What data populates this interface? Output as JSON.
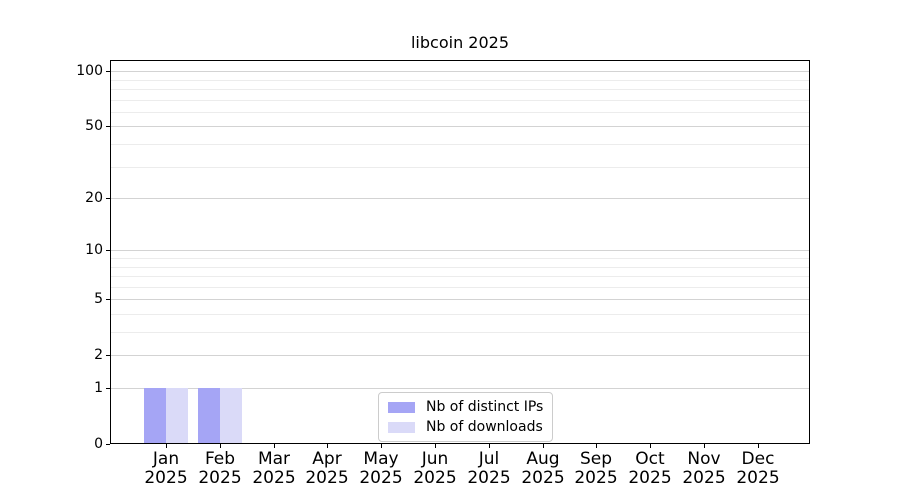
{
  "chart_data": {
    "type": "bar",
    "title": "libcoin 2025",
    "x_axis": {
      "months": [
        "Jan",
        "Feb",
        "Mar",
        "Apr",
        "May",
        "Jun",
        "Jul",
        "Aug",
        "Sep",
        "Oct",
        "Nov",
        "Dec"
      ],
      "year": "2025"
    },
    "y_axis": {
      "scale": "log10(1+value)",
      "ticks": [
        0,
        1,
        2,
        5,
        10,
        20,
        50,
        100
      ],
      "minor_gridlines": [
        3,
        4,
        6,
        7,
        8,
        9,
        30,
        40,
        60,
        70,
        80,
        90
      ],
      "min": 0,
      "max": 115
    },
    "series": [
      {
        "name": "Nb of distinct IPs",
        "color": "#a5a5f5",
        "values": [
          1,
          1,
          0,
          0,
          0,
          0,
          0,
          0,
          0,
          0,
          0,
          0
        ]
      },
      {
        "name": "Nb of downloads",
        "color": "#dadaf8",
        "values": [
          1,
          1,
          0,
          0,
          0,
          0,
          0,
          0,
          0,
          0,
          0,
          0
        ]
      }
    ],
    "legend_position": "lower center",
    "grid": "horizontal"
  }
}
